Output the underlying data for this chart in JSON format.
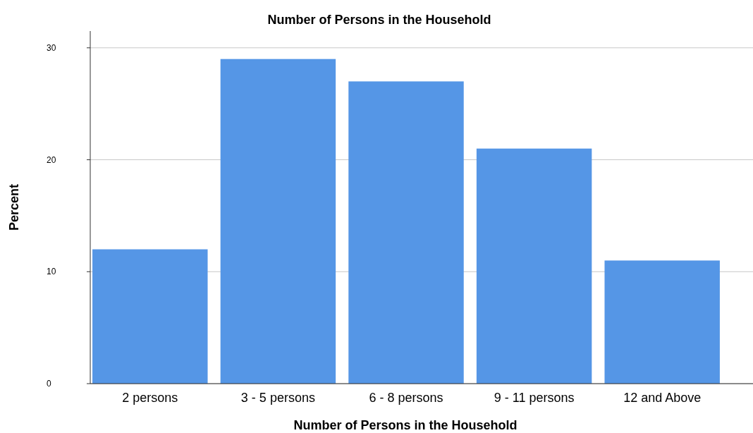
{
  "chart_data": {
    "type": "bar",
    "title": "Number of Persons in the Household",
    "xlabel": "Number of Persons in the Household",
    "ylabel": "Percent",
    "categories": [
      "2 persons",
      "3 - 5 persons",
      "6 - 8 persons",
      "9 - 11 persons",
      "12 and Above"
    ],
    "values": [
      12,
      29,
      27,
      21,
      11
    ],
    "color": "#5596e6",
    "ylim": [
      0,
      31.5
    ],
    "yticks": [
      0,
      10,
      20,
      30
    ],
    "grid": "y"
  }
}
